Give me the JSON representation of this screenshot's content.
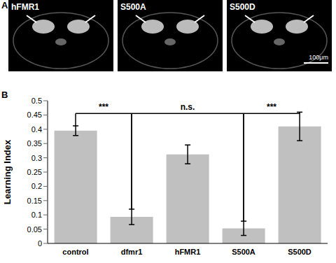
{
  "panel_a": {
    "label": "A",
    "images": [
      "hFMR1",
      "S500A",
      "S500D"
    ],
    "scale_bar": "100μm"
  },
  "chart_data": {
    "type": "bar",
    "title": "B",
    "y_label": "Learning Index",
    "categories": [
      "control",
      "dfmr1",
      "hFMR1",
      "S500A",
      "S500D"
    ],
    "values": [
      0.395,
      0.093,
      0.312,
      0.053,
      0.41
    ],
    "errors": [
      0.017,
      0.027,
      0.033,
      0.025,
      0.05
    ],
    "color": "#c0c0c0",
    "ylim": [
      0,
      0.5
    ],
    "yticks": [
      0,
      0.05,
      0.1,
      0.15,
      0.2,
      0.25,
      0.3,
      0.35,
      0.4,
      0.45,
      0.5
    ],
    "grid": false,
    "annotations": [
      {
        "text": "***",
        "between": [
          0,
          1
        ],
        "y": 0.455
      },
      {
        "text": "n.s.",
        "between": [
          1,
          3
        ],
        "y": 0.455
      },
      {
        "text": "***",
        "between": [
          3,
          4
        ],
        "y": 0.455
      }
    ]
  }
}
